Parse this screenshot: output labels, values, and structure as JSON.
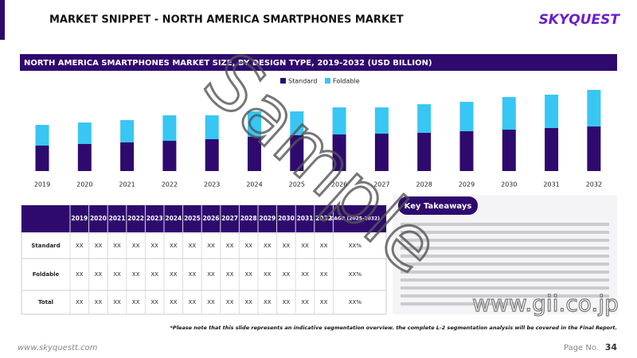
{
  "header": {
    "title": "MARKET SNIPPET - NORTH AMERICA SMARTPHONES MARKET",
    "logo": "SKYQUEST"
  },
  "chart_data": {
    "type": "bar",
    "stacked": true,
    "title": "NORTH AMERICA SMARTPHONES MARKET SIZE, BY DESIGN TYPE, 2019-2032 (USD BILLION)",
    "categories": [
      "2019",
      "2020",
      "2021",
      "2022",
      "2023",
      "2024",
      "2025",
      "2026",
      "2027",
      "2028",
      "2029",
      "2030",
      "2031",
      "2032"
    ],
    "series": [
      {
        "name": "Standard",
        "color": "#2e0a6e",
        "values": [
          32,
          34,
          36,
          38,
          40,
          43,
          45,
          46,
          47,
          48,
          50,
          52,
          54,
          56
        ]
      },
      {
        "name": "Foldable",
        "color": "#38c6f4",
        "values": [
          26,
          27,
          28,
          32,
          30,
          32,
          30,
          34,
          33,
          36,
          37,
          41,
          42,
          46
        ]
      }
    ],
    "legend": "top"
  },
  "table": {
    "columns": [
      "2019",
      "2020",
      "2021",
      "2022",
      "2023",
      "2024",
      "2025",
      "2026",
      "2027",
      "2028",
      "2029",
      "2030",
      "2031",
      "2032",
      "CAGR (2025-2032)"
    ],
    "rows": [
      [
        "Standard",
        "XX",
        "XX",
        "XX",
        "XX",
        "XX",
        "XX",
        "XX",
        "XX",
        "XX",
        "XX",
        "XX",
        "XX",
        "XX",
        "XX",
        "XX%"
      ],
      [
        "Foldable",
        "XX",
        "XX",
        "XX",
        "XX",
        "XX",
        "XX",
        "XX",
        "XX",
        "XX",
        "XX",
        "XX",
        "XX",
        "XX",
        "XX",
        "XX%"
      ],
      [
        "Total",
        "XX",
        "XX",
        "XX",
        "XX",
        "XX",
        "XX",
        "XX",
        "XX",
        "XX",
        "XX",
        "XX",
        "XX",
        "XX",
        "XX",
        "XX%"
      ]
    ]
  },
  "takeaways": {
    "title": "Key Takeaways"
  },
  "footer": {
    "note": "*Please note that this slide represents an indicative segmentation overview. the complete L-2 segmentation analysis will be covered in the Final Report.",
    "website": "www.skyquestt.com",
    "page_label": "Page No.",
    "page_number": "34"
  },
  "watermark": "Sample",
  "source_watermark": "www.gii.co.jp"
}
